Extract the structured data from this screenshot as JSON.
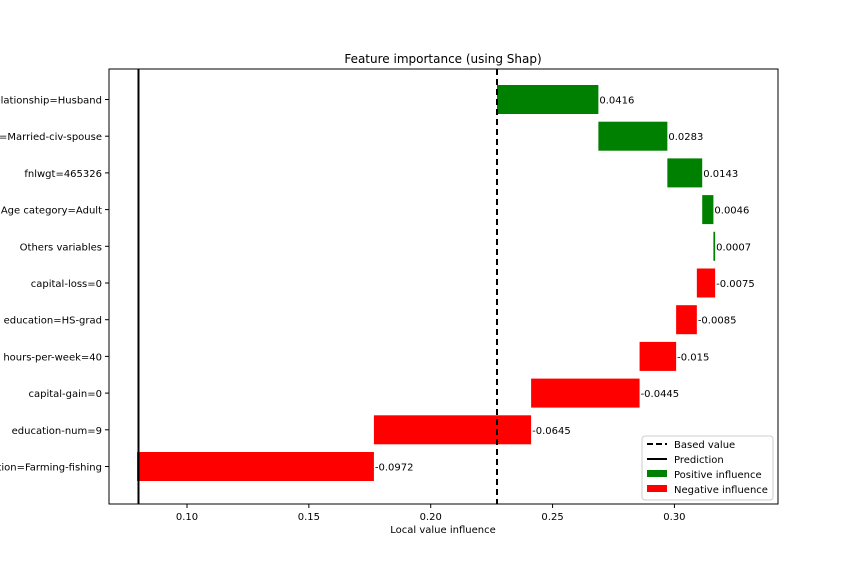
{
  "chart_data": {
    "type": "bar",
    "orientation": "horizontal",
    "style": "waterfall",
    "title": "Feature importance (using Shap)",
    "xlabel": "Local value influence",
    "ylabel": "",
    "xlim": [
      0.068,
      0.3425
    ],
    "x_ticks": [
      0.1,
      0.15,
      0.2,
      0.25,
      0.3
    ],
    "x_tick_labels": [
      "0.10",
      "0.15",
      "0.20",
      "0.25",
      "0.30"
    ],
    "base_value": 0.2272,
    "prediction": 0.0801,
    "grid": false,
    "legend_position": "lower-right",
    "legend": [
      {
        "label": "Based value",
        "kind": "dashed-line"
      },
      {
        "label": "Prediction",
        "kind": "solid-line"
      },
      {
        "label": "Positive influence",
        "kind": "patch",
        "color": "#008000"
      },
      {
        "label": "Negative influence",
        "kind": "patch",
        "color": "#ff0000"
      }
    ],
    "categories": [
      "Relationship=Husband",
      "Marital-status=Married-civ-spouse",
      "fnlwgt=465326",
      "Age category=Adult",
      "Others variables",
      "capital-loss=0",
      "education=HS-grad",
      "hours-per-week=40",
      "capital-gain=0",
      "education-num=9",
      "Occupation=Farming-fishing"
    ],
    "values": [
      0.0416,
      0.0283,
      0.0143,
      0.0046,
      0.0007,
      -0.0075,
      -0.0085,
      -0.015,
      -0.0445,
      -0.0645,
      -0.0972
    ],
    "value_labels": [
      "0.0416",
      "0.0283",
      "0.0143",
      "0.0046",
      "0.0007",
      "-0.0075",
      "-0.0085",
      "-0.015",
      "-0.0445",
      "-0.0645",
      "-0.0972"
    ],
    "colors": {
      "positive": "#008000",
      "negative": "#ff0000"
    }
  }
}
